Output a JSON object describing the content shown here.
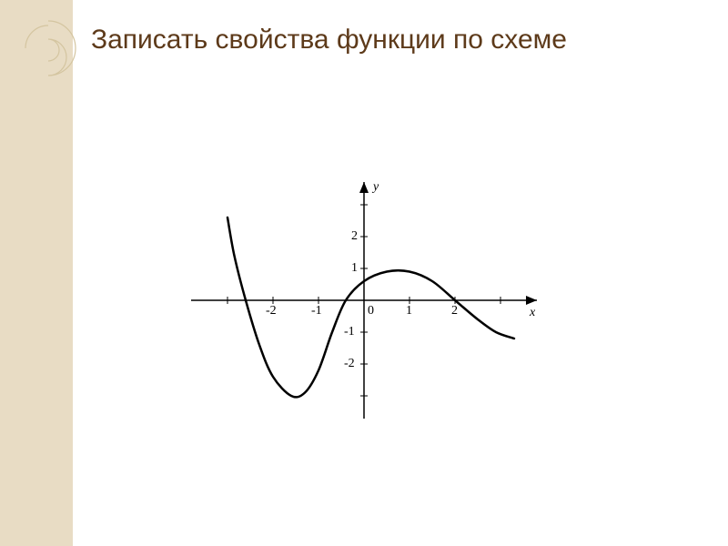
{
  "title": "Записать свойства функции по схеме",
  "sidebar": {
    "background_color": "#e8dcc4",
    "ornament_stroke": "#d4c5a0"
  },
  "chart": {
    "type": "line",
    "background_color": "#ffffff",
    "axis_color": "#000000",
    "curve_color": "#000000",
    "curve_width": 2.5,
    "x_axis_label": "x",
    "y_axis_label": "y",
    "xlim": [
      -4,
      4
    ],
    "ylim": [
      -4,
      4
    ],
    "x_ticks": [
      -2,
      -1,
      0,
      1,
      2
    ],
    "y_ticks": [
      -2,
      -1,
      1,
      2
    ],
    "x_tick_labels": [
      "-2",
      "-1",
      "0",
      "1",
      "2"
    ],
    "y_tick_labels": [
      "-2",
      "-1",
      "1",
      "2"
    ],
    "label_fontsize": 14,
    "curve_points": [
      [
        -3.0,
        2.6
      ],
      [
        -2.85,
        1.4
      ],
      [
        -2.6,
        0.0
      ],
      [
        -2.3,
        -1.4
      ],
      [
        -2.0,
        -2.4
      ],
      [
        -1.6,
        -3.0
      ],
      [
        -1.3,
        -2.9
      ],
      [
        -1.0,
        -2.2
      ],
      [
        -0.7,
        -1.0
      ],
      [
        -0.4,
        0.0
      ],
      [
        0.0,
        0.6
      ],
      [
        0.5,
        0.9
      ],
      [
        1.0,
        0.9
      ],
      [
        1.5,
        0.6
      ],
      [
        2.0,
        0.0
      ],
      [
        2.5,
        -0.6
      ],
      [
        2.9,
        -1.0
      ],
      [
        3.3,
        -1.2
      ]
    ]
  }
}
